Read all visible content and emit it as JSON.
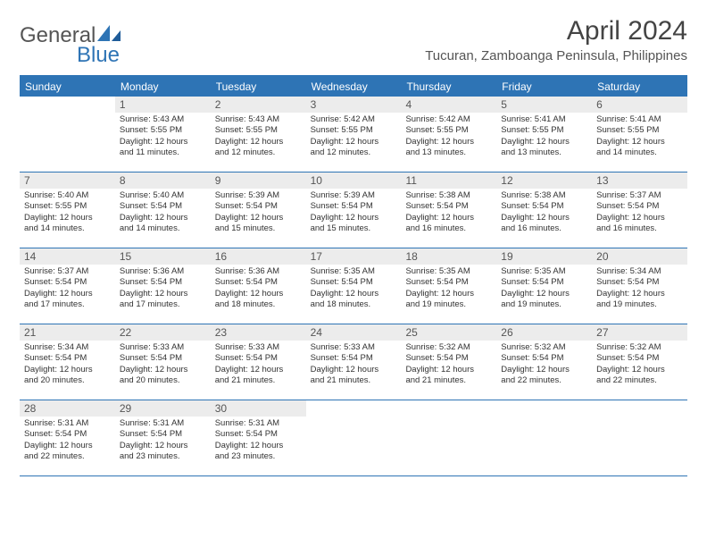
{
  "brand": {
    "part1": "General",
    "part2": "Blue"
  },
  "title": "April 2024",
  "location": "Tucuran, Zamboanga Peninsula, Philippines",
  "day_headers": [
    "Sunday",
    "Monday",
    "Tuesday",
    "Wednesday",
    "Thursday",
    "Friday",
    "Saturday"
  ],
  "colors": {
    "header_bg": "#2e74b5",
    "header_text": "#ffffff",
    "daynum_bg": "#ececec",
    "border": "#2e74b5",
    "text": "#333333",
    "title_text": "#444444"
  },
  "fonts": {
    "title_size_pt": 22,
    "location_size_pt": 11,
    "header_size_pt": 9,
    "body_size_pt": 7
  },
  "layout": {
    "columns": 7,
    "rows": 5,
    "aspect_w": 792,
    "aspect_h": 612
  },
  "weeks": [
    [
      null,
      {
        "n": "1",
        "sr": "Sunrise: 5:43 AM",
        "ss": "Sunset: 5:55 PM",
        "d1": "Daylight: 12 hours",
        "d2": "and 11 minutes."
      },
      {
        "n": "2",
        "sr": "Sunrise: 5:43 AM",
        "ss": "Sunset: 5:55 PM",
        "d1": "Daylight: 12 hours",
        "d2": "and 12 minutes."
      },
      {
        "n": "3",
        "sr": "Sunrise: 5:42 AM",
        "ss": "Sunset: 5:55 PM",
        "d1": "Daylight: 12 hours",
        "d2": "and 12 minutes."
      },
      {
        "n": "4",
        "sr": "Sunrise: 5:42 AM",
        "ss": "Sunset: 5:55 PM",
        "d1": "Daylight: 12 hours",
        "d2": "and 13 minutes."
      },
      {
        "n": "5",
        "sr": "Sunrise: 5:41 AM",
        "ss": "Sunset: 5:55 PM",
        "d1": "Daylight: 12 hours",
        "d2": "and 13 minutes."
      },
      {
        "n": "6",
        "sr": "Sunrise: 5:41 AM",
        "ss": "Sunset: 5:55 PM",
        "d1": "Daylight: 12 hours",
        "d2": "and 14 minutes."
      }
    ],
    [
      {
        "n": "7",
        "sr": "Sunrise: 5:40 AM",
        "ss": "Sunset: 5:55 PM",
        "d1": "Daylight: 12 hours",
        "d2": "and 14 minutes."
      },
      {
        "n": "8",
        "sr": "Sunrise: 5:40 AM",
        "ss": "Sunset: 5:54 PM",
        "d1": "Daylight: 12 hours",
        "d2": "and 14 minutes."
      },
      {
        "n": "9",
        "sr": "Sunrise: 5:39 AM",
        "ss": "Sunset: 5:54 PM",
        "d1": "Daylight: 12 hours",
        "d2": "and 15 minutes."
      },
      {
        "n": "10",
        "sr": "Sunrise: 5:39 AM",
        "ss": "Sunset: 5:54 PM",
        "d1": "Daylight: 12 hours",
        "d2": "and 15 minutes."
      },
      {
        "n": "11",
        "sr": "Sunrise: 5:38 AM",
        "ss": "Sunset: 5:54 PM",
        "d1": "Daylight: 12 hours",
        "d2": "and 16 minutes."
      },
      {
        "n": "12",
        "sr": "Sunrise: 5:38 AM",
        "ss": "Sunset: 5:54 PM",
        "d1": "Daylight: 12 hours",
        "d2": "and 16 minutes."
      },
      {
        "n": "13",
        "sr": "Sunrise: 5:37 AM",
        "ss": "Sunset: 5:54 PM",
        "d1": "Daylight: 12 hours",
        "d2": "and 16 minutes."
      }
    ],
    [
      {
        "n": "14",
        "sr": "Sunrise: 5:37 AM",
        "ss": "Sunset: 5:54 PM",
        "d1": "Daylight: 12 hours",
        "d2": "and 17 minutes."
      },
      {
        "n": "15",
        "sr": "Sunrise: 5:36 AM",
        "ss": "Sunset: 5:54 PM",
        "d1": "Daylight: 12 hours",
        "d2": "and 17 minutes."
      },
      {
        "n": "16",
        "sr": "Sunrise: 5:36 AM",
        "ss": "Sunset: 5:54 PM",
        "d1": "Daylight: 12 hours",
        "d2": "and 18 minutes."
      },
      {
        "n": "17",
        "sr": "Sunrise: 5:35 AM",
        "ss": "Sunset: 5:54 PM",
        "d1": "Daylight: 12 hours",
        "d2": "and 18 minutes."
      },
      {
        "n": "18",
        "sr": "Sunrise: 5:35 AM",
        "ss": "Sunset: 5:54 PM",
        "d1": "Daylight: 12 hours",
        "d2": "and 19 minutes."
      },
      {
        "n": "19",
        "sr": "Sunrise: 5:35 AM",
        "ss": "Sunset: 5:54 PM",
        "d1": "Daylight: 12 hours",
        "d2": "and 19 minutes."
      },
      {
        "n": "20",
        "sr": "Sunrise: 5:34 AM",
        "ss": "Sunset: 5:54 PM",
        "d1": "Daylight: 12 hours",
        "d2": "and 19 minutes."
      }
    ],
    [
      {
        "n": "21",
        "sr": "Sunrise: 5:34 AM",
        "ss": "Sunset: 5:54 PM",
        "d1": "Daylight: 12 hours",
        "d2": "and 20 minutes."
      },
      {
        "n": "22",
        "sr": "Sunrise: 5:33 AM",
        "ss": "Sunset: 5:54 PM",
        "d1": "Daylight: 12 hours",
        "d2": "and 20 minutes."
      },
      {
        "n": "23",
        "sr": "Sunrise: 5:33 AM",
        "ss": "Sunset: 5:54 PM",
        "d1": "Daylight: 12 hours",
        "d2": "and 21 minutes."
      },
      {
        "n": "24",
        "sr": "Sunrise: 5:33 AM",
        "ss": "Sunset: 5:54 PM",
        "d1": "Daylight: 12 hours",
        "d2": "and 21 minutes."
      },
      {
        "n": "25",
        "sr": "Sunrise: 5:32 AM",
        "ss": "Sunset: 5:54 PM",
        "d1": "Daylight: 12 hours",
        "d2": "and 21 minutes."
      },
      {
        "n": "26",
        "sr": "Sunrise: 5:32 AM",
        "ss": "Sunset: 5:54 PM",
        "d1": "Daylight: 12 hours",
        "d2": "and 22 minutes."
      },
      {
        "n": "27",
        "sr": "Sunrise: 5:32 AM",
        "ss": "Sunset: 5:54 PM",
        "d1": "Daylight: 12 hours",
        "d2": "and 22 minutes."
      }
    ],
    [
      {
        "n": "28",
        "sr": "Sunrise: 5:31 AM",
        "ss": "Sunset: 5:54 PM",
        "d1": "Daylight: 12 hours",
        "d2": "and 22 minutes."
      },
      {
        "n": "29",
        "sr": "Sunrise: 5:31 AM",
        "ss": "Sunset: 5:54 PM",
        "d1": "Daylight: 12 hours",
        "d2": "and 23 minutes."
      },
      {
        "n": "30",
        "sr": "Sunrise: 5:31 AM",
        "ss": "Sunset: 5:54 PM",
        "d1": "Daylight: 12 hours",
        "d2": "and 23 minutes."
      },
      null,
      null,
      null,
      null
    ]
  ]
}
